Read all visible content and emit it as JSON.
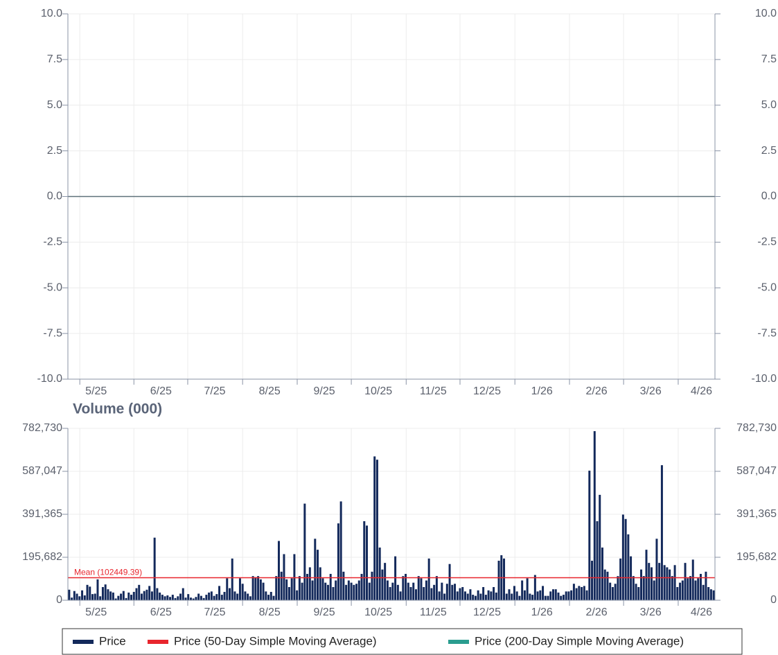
{
  "chart_data": [
    {
      "type": "line",
      "xlim": [
        0,
        250
      ],
      "xticks": [
        {
          "value": 4.6,
          "label": "5/25"
        },
        {
          "value": 25.5,
          "label": "6/25"
        },
        {
          "value": 46.3,
          "label": "7/25"
        },
        {
          "value": 67.5,
          "label": "8/25"
        },
        {
          "value": 88.6,
          "label": "9/25"
        },
        {
          "value": 109.5,
          "label": "10/25"
        },
        {
          "value": 130.7,
          "label": "11/25"
        },
        {
          "value": 151.5,
          "label": "12/25"
        },
        {
          "value": 172.7,
          "label": "1/26"
        },
        {
          "value": 193.8,
          "label": "2/26"
        },
        {
          "value": 214.7,
          "label": "3/26"
        },
        {
          "value": 235.8,
          "label": "4/26"
        }
      ],
      "ylim": [
        -10,
        10
      ],
      "yticks": [
        {
          "value": -10,
          "label": "-10.0"
        },
        -7.5,
        {
          "value": -5,
          "label": "-5.0"
        },
        -2.5,
        {
          "value": 0,
          "label": "0.0"
        },
        2.5,
        {
          "value": 5,
          "label": "5.0"
        },
        7.5,
        {
          "value": 10,
          "label": "10.0"
        }
      ],
      "grid": true,
      "legend": "bottom",
      "series": [
        {
          "name": "Price",
          "color": "#13295b"
        },
        {
          "name": "Price (50-Day Simple Moving Average)",
          "color": "#e8252d"
        },
        {
          "name": "Price (200-Day Simple Moving Average)",
          "color": "#2a9d8f"
        }
      ]
    },
    {
      "type": "bar",
      "title": "Volume (000)",
      "color": "#13295b",
      "xlim": [
        0,
        250
      ],
      "xticks": [
        {
          "value": 4.6,
          "label": "5/25"
        },
        {
          "value": 25.5,
          "label": "6/25"
        },
        {
          "value": 46.3,
          "label": "7/25"
        },
        {
          "value": 67.5,
          "label": "8/25"
        },
        {
          "value": 88.6,
          "label": "9/25"
        },
        {
          "value": 109.5,
          "label": "10/25"
        },
        {
          "value": 130.7,
          "label": "11/25"
        },
        {
          "value": 151.5,
          "label": "12/25"
        },
        {
          "value": 172.7,
          "label": "1/26"
        },
        {
          "value": 193.8,
          "label": "2/26"
        },
        {
          "value": 214.7,
          "label": "3/26"
        },
        {
          "value": 235.8,
          "label": "4/26"
        }
      ],
      "ylim": [
        0,
        782730
      ],
      "yticks": [
        0,
        {
          "value": 195682,
          "label": "195,682"
        },
        {
          "value": 391365,
          "label": "391,365"
        },
        {
          "value": 587047,
          "label": "587,047"
        },
        {
          "value": 782730,
          "label": "782,730"
        }
      ],
      "grid": true,
      "annotations": [
        {
          "label": "Mean (102449.39)",
          "value": 102449.39,
          "color": "#e8252d"
        }
      ],
      "values": [
        48000,
        12000,
        42000,
        30000,
        18000,
        45000,
        22000,
        70000,
        62000,
        28000,
        30000,
        95000,
        18000,
        60000,
        72000,
        50000,
        40000,
        35000,
        8000,
        20000,
        30000,
        42000,
        10000,
        35000,
        25000,
        38000,
        55000,
        70000,
        30000,
        42000,
        48000,
        65000,
        40000,
        285000,
        55000,
        35000,
        25000,
        18000,
        22000,
        15000,
        25000,
        10000,
        18000,
        30000,
        55000,
        12000,
        28000,
        12000,
        8000,
        15000,
        30000,
        20000,
        10000,
        25000,
        35000,
        40000,
        20000,
        28000,
        65000,
        25000,
        38000,
        100000,
        55000,
        190000,
        40000,
        30000,
        100000,
        75000,
        40000,
        30000,
        18000,
        110000,
        105000,
        110000,
        95000,
        80000,
        40000,
        25000,
        38000,
        20000,
        110000,
        270000,
        130000,
        210000,
        95000,
        60000,
        100000,
        210000,
        45000,
        110000,
        80000,
        440000,
        120000,
        150000,
        90000,
        280000,
        230000,
        150000,
        100000,
        80000,
        70000,
        120000,
        60000,
        90000,
        350000,
        450000,
        130000,
        70000,
        90000,
        80000,
        70000,
        75000,
        90000,
        120000,
        360000,
        340000,
        80000,
        130000,
        655000,
        640000,
        240000,
        140000,
        170000,
        90000,
        60000,
        80000,
        200000,
        70000,
        40000,
        110000,
        120000,
        80000,
        60000,
        80000,
        50000,
        110000,
        100000,
        60000,
        90000,
        190000,
        55000,
        70000,
        110000,
        40000,
        80000,
        30000,
        75000,
        165000,
        70000,
        75000,
        40000,
        55000,
        60000,
        40000,
        30000,
        50000,
        25000,
        20000,
        45000,
        30000,
        60000,
        25000,
        45000,
        40000,
        60000,
        35000,
        180000,
        205000,
        190000,
        30000,
        50000,
        30000,
        65000,
        40000,
        20000,
        90000,
        45000,
        100000,
        30000,
        25000,
        115000,
        40000,
        45000,
        65000,
        20000,
        20000,
        40000,
        50000,
        50000,
        35000,
        20000,
        25000,
        40000,
        40000,
        45000,
        75000,
        55000,
        65000,
        60000,
        65000,
        45000,
        590000,
        180000,
        770000,
        360000,
        480000,
        240000,
        140000,
        130000,
        80000,
        60000,
        75000,
        110000,
        190000,
        390000,
        370000,
        300000,
        200000,
        110000,
        75000,
        60000,
        140000,
        110000,
        230000,
        170000,
        150000,
        90000,
        280000,
        170000,
        615000,
        160000,
        150000,
        140000,
        110000,
        160000,
        60000,
        80000,
        90000,
        170000,
        100000,
        110000,
        185000,
        90000,
        100000,
        120000,
        70000,
        130000,
        60000,
        50000,
        45000
      ]
    }
  ]
}
